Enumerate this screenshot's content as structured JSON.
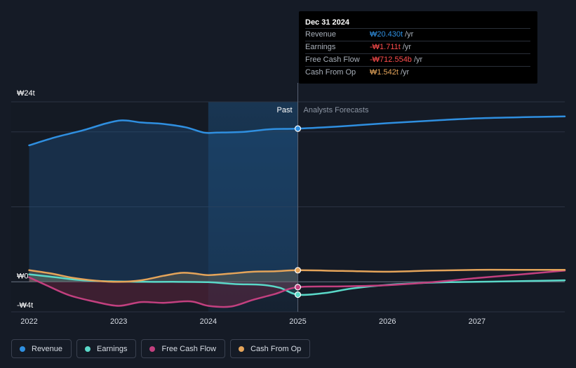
{
  "chart_data": {
    "type": "line",
    "currency_symbol": "₩",
    "y_axis": {
      "ylim": [
        -4,
        24
      ],
      "tick_labels": [
        "₩24t",
        "₩0",
        "-₩4t"
      ],
      "ticks": [
        24,
        0,
        -4
      ]
    },
    "x_axis": {
      "xlim": [
        2021.8,
        2027.98
      ],
      "ticks": [
        2022,
        2023,
        2024,
        2025,
        2026,
        2027
      ],
      "tick_labels": [
        "2022",
        "2023",
        "2024",
        "2025",
        "2026",
        "2027"
      ]
    },
    "past_label": "Past",
    "forecast_label": "Analysts Forecasts",
    "divider_x": 2025.0,
    "highlight_start_x": 2024.0,
    "grid": true,
    "series": [
      {
        "name": "Revenue",
        "color": "#2f8fe0",
        "x": [
          2022.0,
          2022.3,
          2022.6,
          2022.85,
          2023.0,
          2023.1,
          2023.25,
          2023.5,
          2023.75,
          2023.95,
          2024.1,
          2024.4,
          2024.7,
          2025.0,
          2025.5,
          2026.0,
          2026.5,
          2027.0,
          2027.5,
          2027.98
        ],
        "values": [
          18.2,
          19.3,
          20.2,
          21.1,
          21.5,
          21.5,
          21.25,
          21.05,
          20.6,
          19.9,
          19.9,
          20.0,
          20.35,
          20.43,
          20.75,
          21.15,
          21.5,
          21.8,
          21.95,
          22.05
        ]
      },
      {
        "name": "Earnings",
        "color": "#5ad8c8",
        "x": [
          2022.0,
          2022.3,
          2022.6,
          2023.0,
          2023.3,
          2023.6,
          2024.0,
          2024.3,
          2024.6,
          2024.8,
          2025.0,
          2025.3,
          2025.6,
          2026.0,
          2026.5,
          2027.0,
          2027.5,
          2027.98
        ],
        "values": [
          1.0,
          0.6,
          0.2,
          0.05,
          0.0,
          0.0,
          -0.05,
          -0.3,
          -0.4,
          -0.8,
          -1.711,
          -1.5,
          -0.9,
          -0.4,
          -0.1,
          0.0,
          0.1,
          0.2
        ]
      },
      {
        "name": "Free Cash Flow",
        "color": "#c2407f",
        "x": [
          2022.0,
          2022.2,
          2022.45,
          2022.75,
          2023.0,
          2023.25,
          2023.5,
          2023.8,
          2024.0,
          2024.25,
          2024.5,
          2024.75,
          2025.0,
          2025.5,
          2026.0,
          2026.5,
          2027.0,
          2027.5,
          2027.98
        ],
        "values": [
          0.6,
          -0.5,
          -1.8,
          -2.7,
          -3.2,
          -2.7,
          -2.8,
          -2.6,
          -3.2,
          -3.3,
          -2.4,
          -1.6,
          -0.7126,
          -0.6,
          -0.45,
          -0.05,
          0.5,
          1.0,
          1.5
        ]
      },
      {
        "name": "Cash From Op",
        "color": "#e4a45a",
        "x": [
          2022.0,
          2022.25,
          2022.5,
          2022.75,
          2023.0,
          2023.25,
          2023.5,
          2023.7,
          2023.85,
          2024.0,
          2024.25,
          2024.5,
          2024.75,
          2025.0,
          2025.5,
          2026.0,
          2026.5,
          2027.0,
          2027.5,
          2027.98
        ],
        "values": [
          1.55,
          1.1,
          0.5,
          0.15,
          0.0,
          0.2,
          0.8,
          1.2,
          1.1,
          0.9,
          1.1,
          1.35,
          1.4,
          1.542,
          1.45,
          1.35,
          1.5,
          1.6,
          1.6,
          1.6
        ]
      }
    ]
  },
  "tooltip": {
    "date": "Dec 31 2024",
    "rows": [
      {
        "name": "Revenue",
        "value": "₩20.430t",
        "unit": "/yr",
        "color": "#2f8fe0"
      },
      {
        "name": "Earnings",
        "value": "-₩1.711t",
        "unit": "/yr",
        "color": "#ff4d4d"
      },
      {
        "name": "Free Cash Flow",
        "value": "-₩712.554b",
        "unit": "/yr",
        "color": "#ff4d4d"
      },
      {
        "name": "Cash From Op",
        "value": "₩1.542t",
        "unit": "/yr",
        "color": "#e4a45a"
      }
    ]
  },
  "legend": [
    {
      "label": "Revenue",
      "color": "#2f8fe0"
    },
    {
      "label": "Earnings",
      "color": "#5ad8c8"
    },
    {
      "label": "Free Cash Flow",
      "color": "#c2407f"
    },
    {
      "label": "Cash From Op",
      "color": "#e4a45a"
    }
  ]
}
